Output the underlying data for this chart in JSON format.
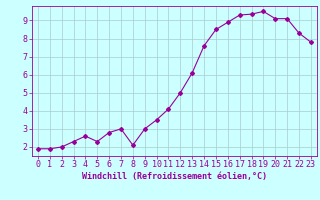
{
  "x": [
    0,
    1,
    2,
    3,
    4,
    5,
    6,
    7,
    8,
    9,
    10,
    11,
    12,
    13,
    14,
    15,
    16,
    17,
    18,
    19,
    20,
    21,
    22,
    23
  ],
  "y": [
    1.9,
    1.9,
    2.0,
    2.3,
    2.6,
    2.3,
    2.8,
    3.0,
    2.1,
    3.0,
    3.5,
    4.1,
    5.0,
    6.1,
    7.6,
    8.5,
    8.9,
    9.3,
    9.35,
    9.5,
    9.1,
    9.1,
    8.3,
    7.8
  ],
  "xlabel": "Windchill (Refroidissement éolien,°C)",
  "xticks": [
    0,
    1,
    2,
    3,
    4,
    5,
    6,
    7,
    8,
    9,
    10,
    11,
    12,
    13,
    14,
    15,
    16,
    17,
    18,
    19,
    20,
    21,
    22,
    23
  ],
  "yticks": [
    2,
    3,
    4,
    5,
    6,
    7,
    8,
    9
  ],
  "ylim": [
    1.5,
    9.8
  ],
  "xlim": [
    -0.5,
    23.5
  ],
  "line_color": "#990099",
  "marker": "D",
  "marker_size": 2,
  "bg_color": "#ccffff",
  "grid_color": "#aacccc",
  "xlabel_fontsize": 6,
  "tick_fontsize": 6,
  "linewidth": 0.8
}
